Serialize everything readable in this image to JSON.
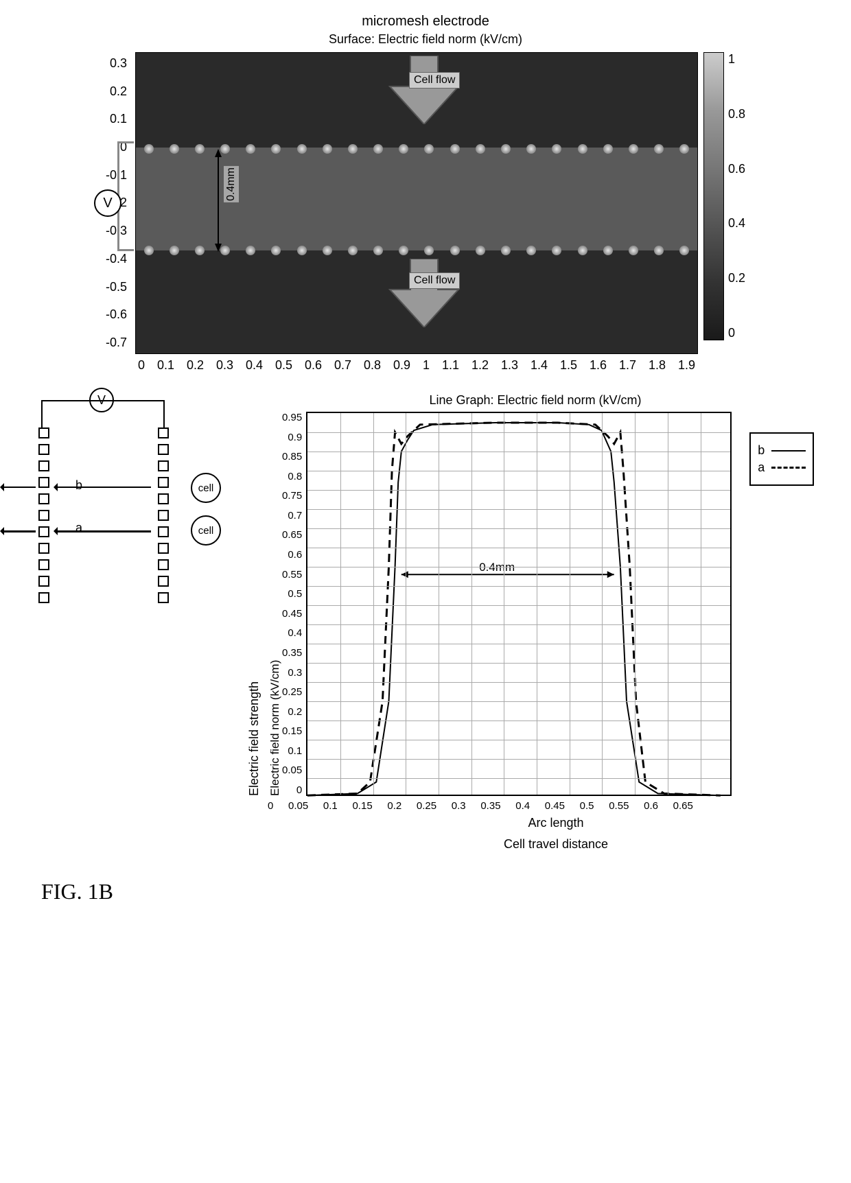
{
  "top": {
    "title": "micromesh electrode",
    "subtitle": "Surface: Electric field norm (kV/cm)",
    "y_ticks": [
      "0.3",
      "0.2",
      "0.1",
      "0",
      "-0.1",
      "-0.2",
      "-0.3",
      "-0.4",
      "-0.5",
      "-0.6",
      "-0.7"
    ],
    "x_ticks": [
      "0",
      "0.1",
      "0.2",
      "0.3",
      "0.4",
      "0.5",
      "0.6",
      "0.7",
      "0.8",
      "0.9",
      "1",
      "1.1",
      "1.2",
      "1.3",
      "1.4",
      "1.5",
      "1.6",
      "1.7",
      "1.8",
      "1.9"
    ],
    "colorbar_ticks": [
      "1",
      "0.8",
      "0.6",
      "0.4",
      "0.2",
      "0"
    ],
    "cell_flow": "Cell\nflow",
    "gap_label": "0.4mm",
    "voltage": "V",
    "heatmap": {
      "bg_color": "#2a2a2a",
      "band_color": "#5a5a5a",
      "n_dots": 22,
      "row1_y": 130,
      "row2_y": 278
    }
  },
  "schematic": {
    "voltage": "V",
    "cell": "cell",
    "path_a": "a",
    "path_b": "b",
    "n_boxes": 11,
    "col1_x": 36,
    "col2_x": 210
  },
  "chart": {
    "title": "Line Graph: Electric field norm (kV/cm)",
    "y_ticks": [
      "0.95",
      "0.9",
      "0.85",
      "0.8",
      "0.75",
      "0.7",
      "0.65",
      "0.6",
      "0.55",
      "0.5",
      "0.45",
      "0.4",
      "0.35",
      "0.3",
      "0.25",
      "0.2",
      "0.15",
      "0.1",
      "0.05",
      "0"
    ],
    "x_ticks": [
      "0",
      "0.05",
      "0.1",
      "0.15",
      "0.2",
      "0.25",
      "0.3",
      "0.35",
      "0.4",
      "0.45",
      "0.5",
      "0.55",
      "0.6",
      "0.65"
    ],
    "y_label_outer": "Electric field strength",
    "y_label": "Electric field norm (kV/cm)",
    "x_label": "Arc length",
    "x_label2": "Cell travel distance",
    "arrow_label": "0.4mm",
    "legend": {
      "b": "b",
      "a": "a"
    },
    "xlim": [
      0,
      0.68
    ],
    "ylim": [
      0,
      1.0
    ],
    "series_b": {
      "style": "solid",
      "color": "#000",
      "points": [
        [
          0,
          0.005
        ],
        [
          0.08,
          0.01
        ],
        [
          0.11,
          0.04
        ],
        [
          0.13,
          0.25
        ],
        [
          0.14,
          0.6
        ],
        [
          0.145,
          0.82
        ],
        [
          0.15,
          0.9
        ],
        [
          0.16,
          0.93
        ],
        [
          0.17,
          0.955
        ],
        [
          0.2,
          0.97
        ],
        [
          0.3,
          0.975
        ],
        [
          0.4,
          0.975
        ],
        [
          0.45,
          0.97
        ],
        [
          0.47,
          0.955
        ],
        [
          0.485,
          0.9
        ],
        [
          0.49,
          0.82
        ],
        [
          0.5,
          0.6
        ],
        [
          0.51,
          0.25
        ],
        [
          0.53,
          0.04
        ],
        [
          0.56,
          0.01
        ],
        [
          0.66,
          0.005
        ]
      ]
    },
    "series_a": {
      "style": "dashed",
      "color": "#000",
      "points": [
        [
          0,
          0.005
        ],
        [
          0.08,
          0.01
        ],
        [
          0.1,
          0.04
        ],
        [
          0.12,
          0.25
        ],
        [
          0.13,
          0.6
        ],
        [
          0.135,
          0.85
        ],
        [
          0.14,
          0.95
        ],
        [
          0.15,
          0.92
        ],
        [
          0.16,
          0.94
        ],
        [
          0.18,
          0.97
        ],
        [
          0.3,
          0.975
        ],
        [
          0.4,
          0.975
        ],
        [
          0.46,
          0.97
        ],
        [
          0.48,
          0.94
        ],
        [
          0.49,
          0.92
        ],
        [
          0.5,
          0.95
        ],
        [
          0.505,
          0.85
        ],
        [
          0.515,
          0.6
        ],
        [
          0.525,
          0.25
        ],
        [
          0.54,
          0.04
        ],
        [
          0.57,
          0.01
        ],
        [
          0.66,
          0.005
        ]
      ]
    }
  },
  "figure_label": "FIG. 1B"
}
